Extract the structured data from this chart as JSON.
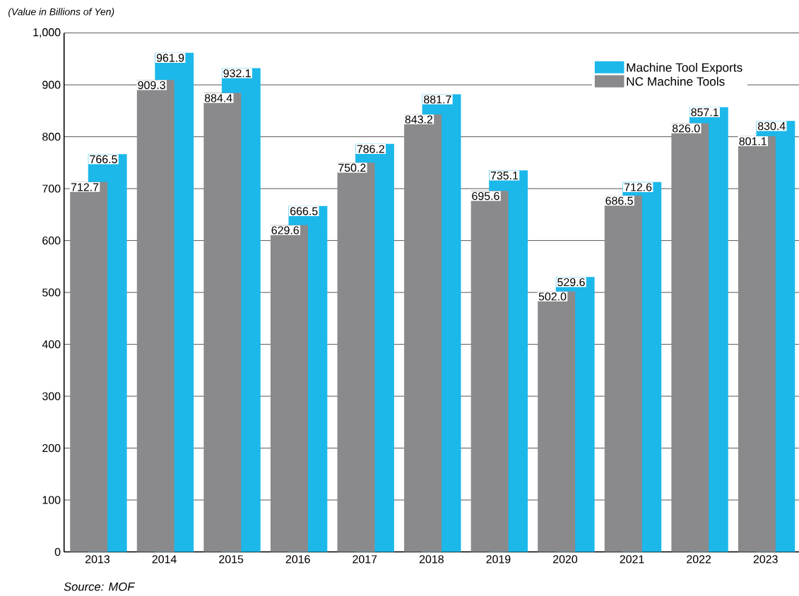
{
  "chart_data": {
    "type": "bar",
    "ylabel": "(Value in Billions of Yen)",
    "categories": [
      "2013",
      "2014",
      "2015",
      "2016",
      "2017",
      "2018",
      "2019",
      "2020",
      "2021",
      "2022",
      "2023"
    ],
    "series": [
      {
        "name": "Machine Tool Exports",
        "color": "#1cb8ea",
        "values": [
          766.5,
          961.9,
          932.1,
          666.5,
          786.2,
          881.7,
          735.1,
          529.6,
          712.6,
          857.1,
          830.4
        ],
        "value_labels": [
          "766.5",
          "961.9",
          "932.1",
          "666.5",
          "786.2",
          "881.7",
          "735.1",
          "529.6",
          "712.6",
          "857.1",
          "830.4"
        ]
      },
      {
        "name": "NC Machine Tools",
        "color": "#8a8a8c",
        "values": [
          712.7,
          909.3,
          884.4,
          629.6,
          750.2,
          843.2,
          695.6,
          502.0,
          686.5,
          826.0,
          801.1
        ],
        "value_labels": [
          "712.7",
          "909.3",
          "884.4",
          "629.6",
          "750.2",
          "843.2",
          "695.6",
          "502.0",
          "686.5",
          "826.0",
          "801.1"
        ]
      }
    ],
    "ylim": [
      0,
      1000
    ],
    "yticks": [
      0,
      100,
      200,
      300,
      400,
      500,
      600,
      700,
      800,
      900,
      {
        "value": 1000,
        "label": "1,000"
      }
    ],
    "grid": "y",
    "legend": "top right",
    "annotations": [
      "Source: MOF"
    ]
  }
}
